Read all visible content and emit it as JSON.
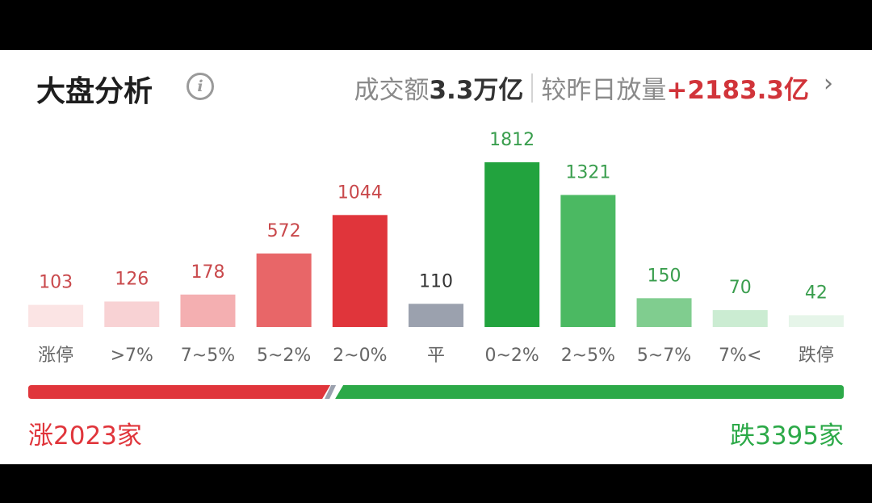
{
  "chart_data": {
    "type": "bar",
    "title": "大盘分析",
    "turnover_label": "成交额",
    "turnover": "3.3万亿",
    "change_label": "较昨日放量",
    "change": "+2183.3亿",
    "categories": [
      "涨停",
      ">7%",
      "7~5%",
      "5~2%",
      "2~0%",
      "平",
      "0~2%",
      "2~5%",
      "5~7%",
      "7%<",
      "跌停"
    ],
    "values": [
      103,
      126,
      178,
      572,
      1044,
      110,
      1812,
      1321,
      150,
      70,
      42
    ],
    "colors": [
      "#fbe4e4",
      "#f8d2d4",
      "#f4afb1",
      "#e86668",
      "#e0353b",
      "#9ba1ae",
      "#22a33e",
      "#4bb962",
      "#80cd8f",
      "#cbecd2",
      "#e6f5e9"
    ],
    "value_label_colors": [
      "#c9494c",
      "#c9494c",
      "#c9494c",
      "#c9494c",
      "#c9494c",
      "#333333",
      "#3a9e4e",
      "#3a9e4e",
      "#3a9e4e",
      "#3a9e4e",
      "#3a9e4e"
    ],
    "breadth": {
      "up": {
        "value": 2023,
        "label": "涨2023家",
        "color": "#e0353b"
      },
      "down": {
        "value": 3395,
        "label": "跌3395家",
        "color": "#2ca948"
      }
    }
  }
}
